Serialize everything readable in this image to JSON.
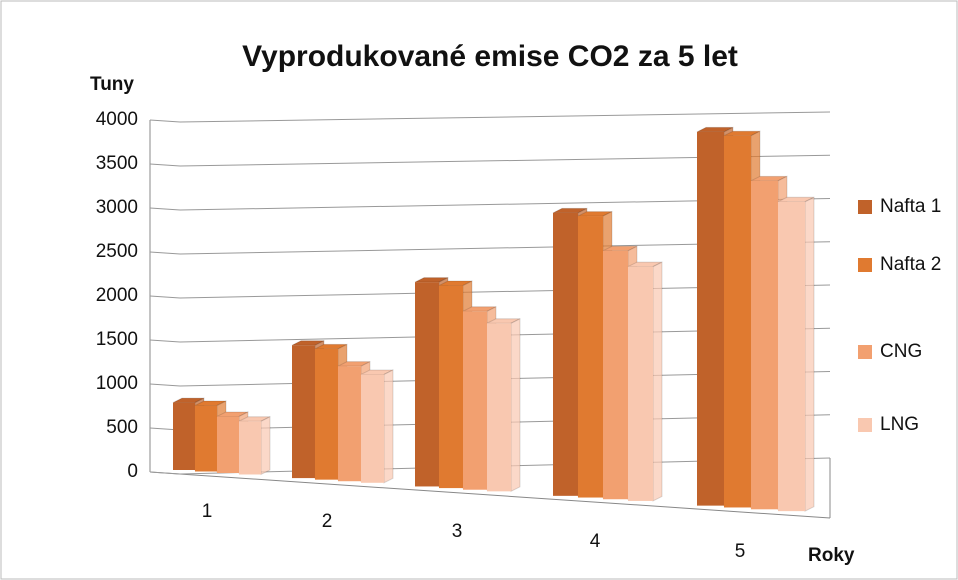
{
  "chart_data": {
    "type": "bar",
    "title": "Vyprodukované emise CO2 za 5 let",
    "y_label": "Tuny",
    "x_label": "Roky",
    "categories": [
      "1",
      "2",
      "3",
      "4",
      "5"
    ],
    "series": [
      {
        "name": "Nafta 1",
        "color": "#c0622a",
        "values": [
          770,
          1480,
          2220,
          2990,
          3840
        ]
      },
      {
        "name": "Nafta 2",
        "color": "#e07a30",
        "values": [
          750,
          1450,
          2190,
          2960,
          3800
        ]
      },
      {
        "name": "CNG",
        "color": "#f2a070",
        "values": [
          640,
          1270,
          1920,
          2600,
          3340
        ]
      },
      {
        "name": "LNG",
        "color": "#f9c8b0",
        "values": [
          600,
          1190,
          1800,
          2440,
          3130
        ]
      }
    ],
    "ylim": [
      0,
      4000
    ],
    "yticks": [
      0,
      500,
      1000,
      1500,
      2000,
      2500,
      3000,
      3500,
      4000
    ],
    "grid": true,
    "legend": "right"
  }
}
